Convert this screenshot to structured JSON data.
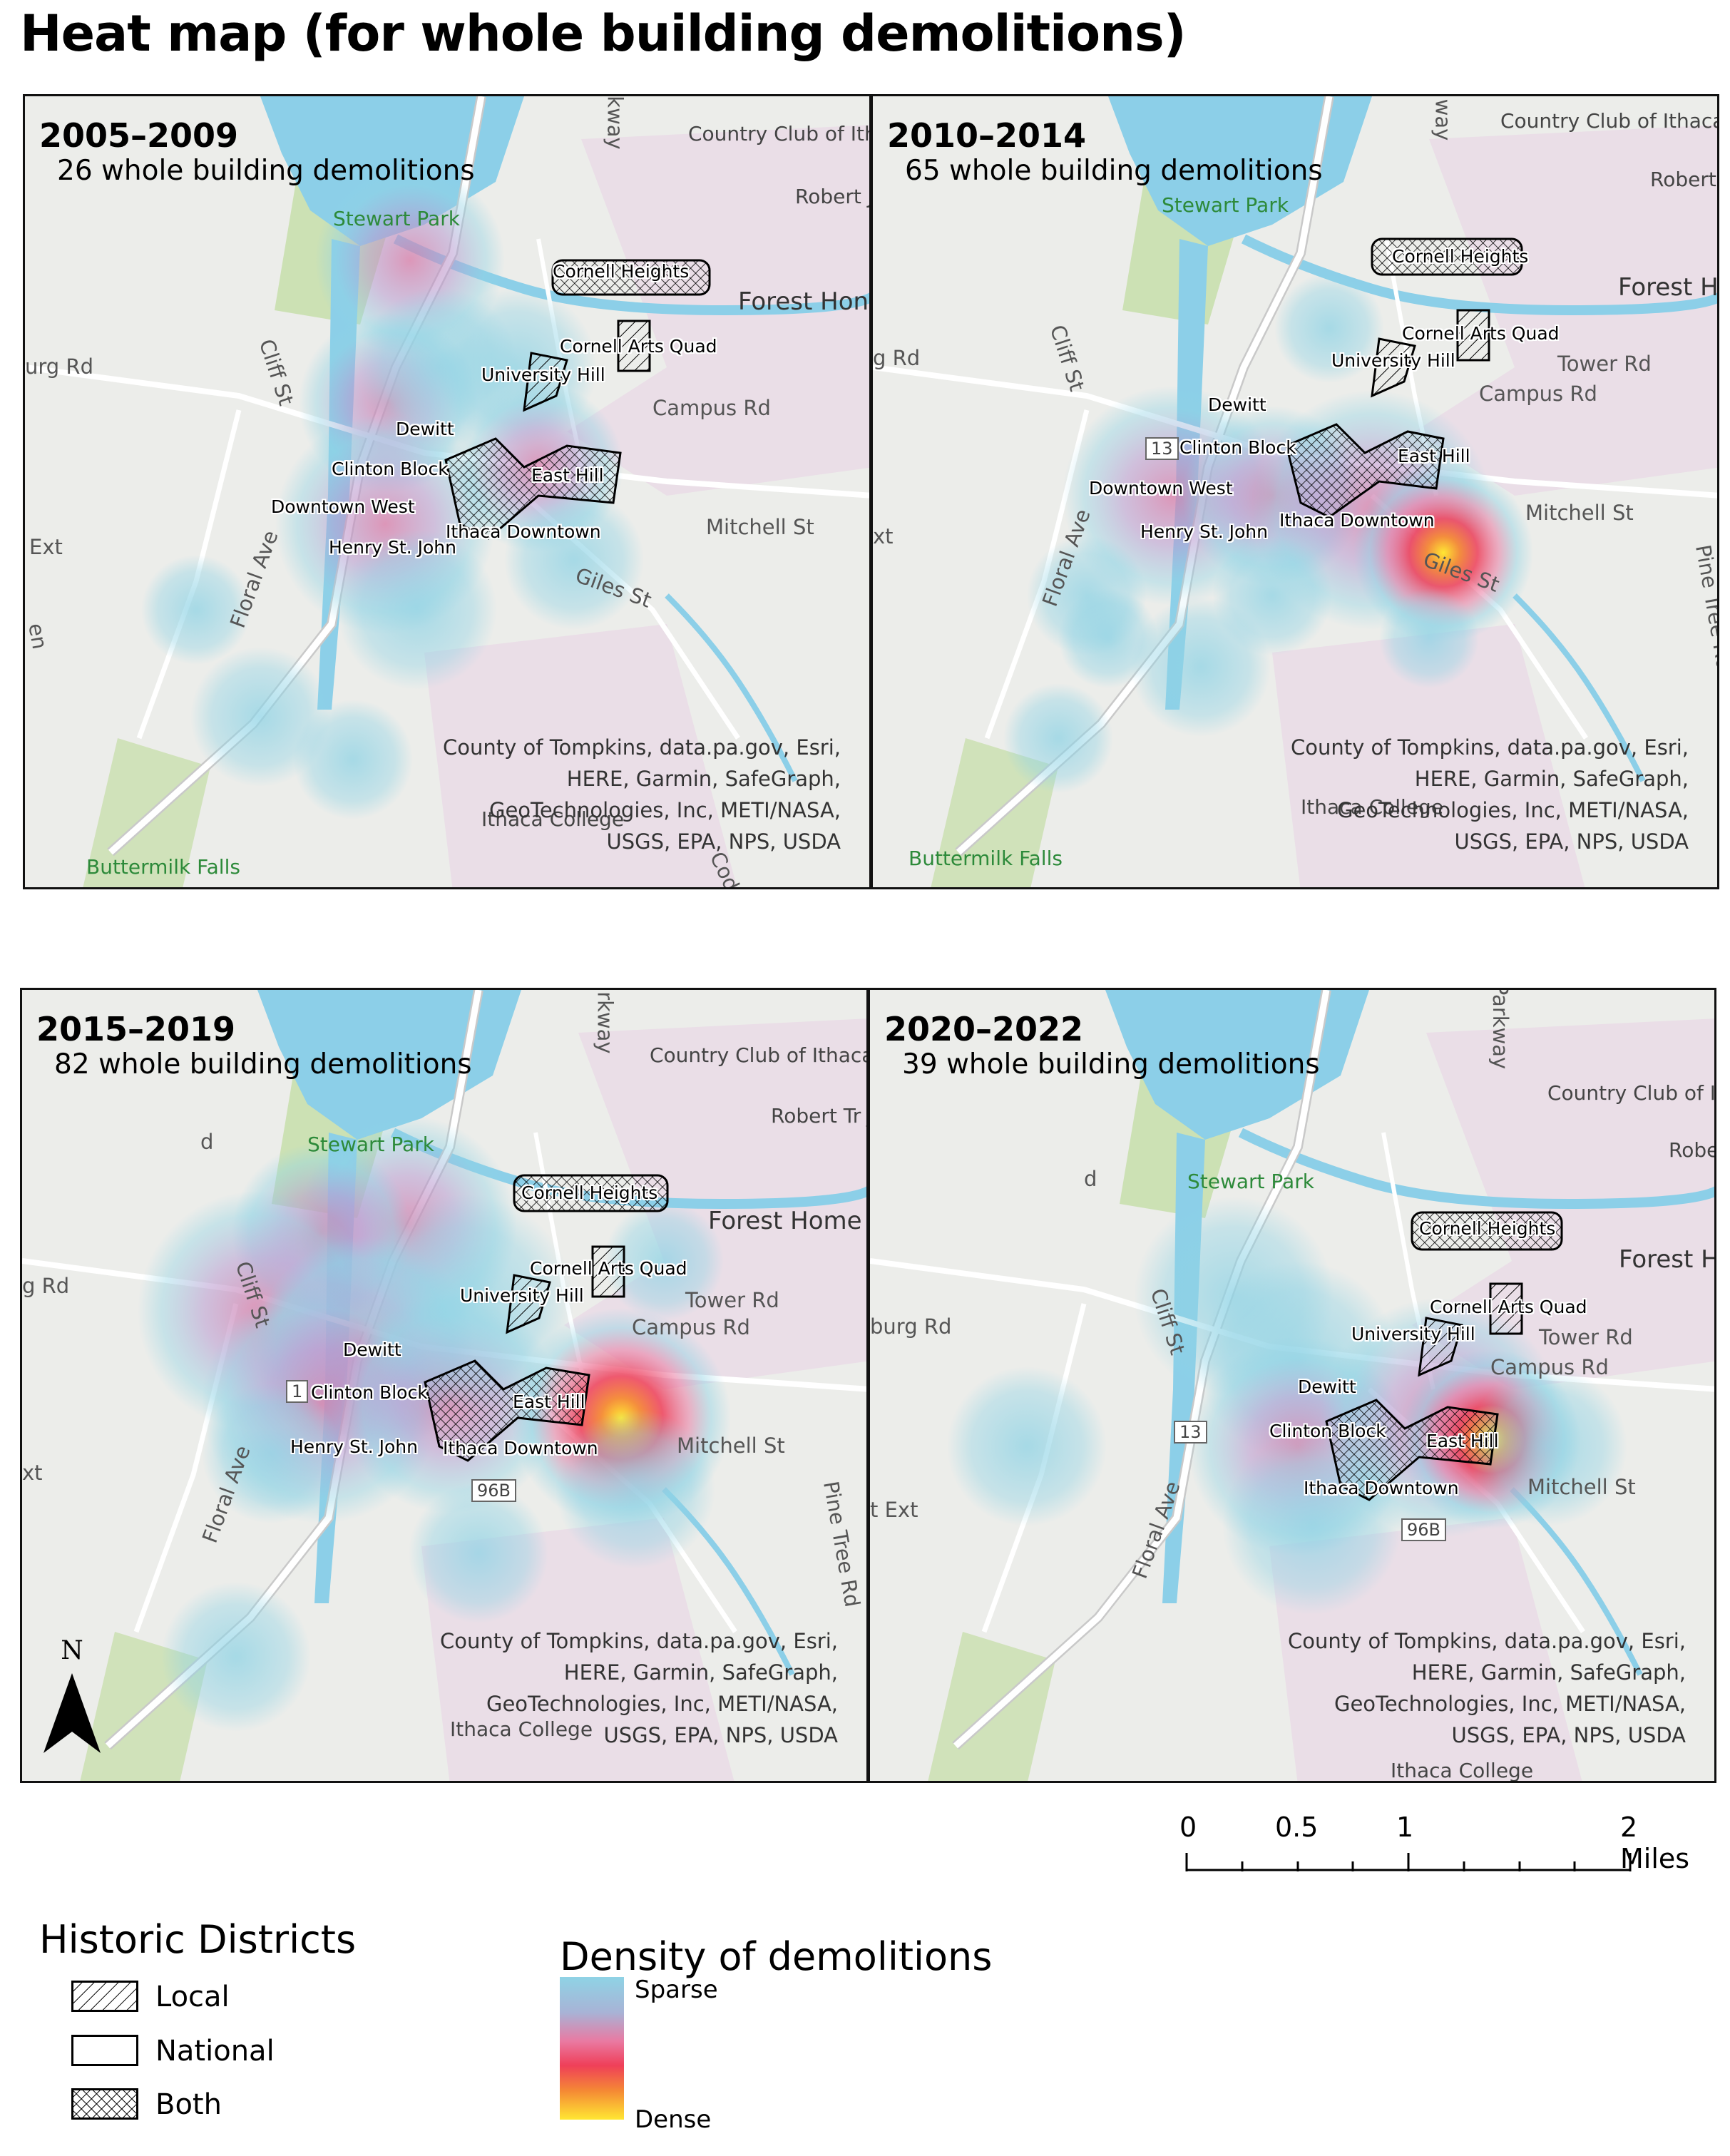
{
  "title": "Heat map (for whole building demolitions)",
  "panels": [
    {
      "period": "2005–2009",
      "count": "26 whole building demolitions",
      "places": {
        "country_club": "Country Club of Ithaca",
        "stewart_park": "Stewart Park",
        "forest_home": "Forest Hon",
        "robert_jones": "Robert Jones Cour",
        "buttermilk": "Buttermilk Falls",
        "ithaca_college": "Ithaca College"
      },
      "roads": {
        "cliff": "Cliff St",
        "burg": "urg Rd",
        "campus": "Campus Rd",
        "mitchell": "Mitchell St",
        "giles": "Giles St",
        "floral": "Floral Ave",
        "ext": "Ext",
        "kway": "kway",
        "codd": "Coddin",
        "en": "en"
      },
      "districts": {
        "cornell_heights": "Cornell Heights",
        "arts_quad": "Cornell Arts Quad",
        "univ_hill": "University Hill",
        "dewitt": "Dewitt",
        "clinton": "Clinton Block",
        "east_hill": "East Hill",
        "downtown_west": "Downtown West",
        "ithaca_downtown": "Ithaca Downtown",
        "henry": "Henry St. John"
      },
      "credits": [
        "County of Tompkins, data.pa.gov, Esri,",
        "HERE, Garmin, SafeGraph,",
        "GeoTechnologies, Inc, METI/NASA,",
        "USGS, EPA, NPS, USDA"
      ]
    },
    {
      "period": "2010–2014",
      "count": "65 whole building demolitions",
      "places": {
        "country_club": "Country Club of Ithaca",
        "stewart_park": "Stewart Park",
        "forest_home": "Forest Home",
        "robert_jones": "Robert Tr Jones G Course",
        "buttermilk": "Buttermilk Falls",
        "ithaca_college": "Ithaca College"
      },
      "roads": {
        "cliff": "Cliff St",
        "burg": "g Rd",
        "campus": "Campus Rd",
        "mitchell": "Mitchell St",
        "giles": "Giles St",
        "floral": "Floral Ave",
        "tower": "Tower Rd",
        "pine": "Pine Tree Rd",
        "kway": "way",
        "xt": "xt",
        "shield13": "13"
      },
      "districts": {
        "cornell_heights": "Cornell Heights",
        "arts_quad": "Cornell Arts Quad",
        "univ_hill": "University Hill",
        "dewitt": "Dewitt",
        "clinton": "Clinton Block",
        "east_hill": "East Hill",
        "downtown_west": "Downtown West",
        "ithaca_downtown": "Ithaca Downtown",
        "henry": "Henry St. John"
      },
      "credits": [
        "County of Tompkins, data.pa.gov, Esri,",
        "HERE, Garmin, SafeGraph,",
        "GeoTechnologies, Inc, METI/NASA,",
        "USGS, EPA, NPS, USDA"
      ]
    },
    {
      "period": "2015–2019",
      "count": "82 whole building demolitions",
      "places": {
        "country_club": "Country Club of Ithaca",
        "stewart_park": "Stewart Park",
        "forest_home": "Forest Home",
        "robert_jones": "Robert Tr Jones G Course",
        "ithaca_college": "Ithaca College"
      },
      "roads": {
        "cliff": "Cliff St",
        "burg": "g Rd",
        "campus": "Campus Rd",
        "mitchell": "Mitchell St",
        "floral": "Floral Ave",
        "tower": "Tower Rd",
        "pine": "Pine Tree Rd",
        "kway": "arkway",
        "xt": "xt",
        "shield96": "96B",
        "shield1": "1",
        "d": "d"
      },
      "districts": {
        "cornell_heights": "Cornell Heights",
        "arts_quad": "Cornell Arts Quad",
        "univ_hill": "University Hill",
        "dewitt": "Dewitt",
        "clinton": "Clinton Block",
        "east_hill": "East Hill",
        "ithaca_downtown": "Ithaca Downtown",
        "henry": "Henry St. John"
      },
      "credits": [
        "County of Tompkins, data.pa.gov, Esri,",
        "HERE, Garmin, SafeGraph,",
        "GeoTechnologies, Inc, METI/NASA,",
        "USGS, EPA, NPS, USDA"
      ]
    },
    {
      "period": "2020–2022",
      "count": "39 whole building demolitions",
      "places": {
        "country_club": "Country Club of Ithaca",
        "stewart_park": "Stewart Park",
        "forest_home": "Forest Ho",
        "robert_jones": "Rober Jones Cou",
        "ithaca_college": "Ithaca College"
      },
      "roads": {
        "cliff": "Cliff St",
        "burg": "burg Rd",
        "campus": "Campus Rd",
        "mitchell": "Mitchell St",
        "floral": "Floral Ave",
        "tower": "Tower Rd",
        "kway": "e Parkway",
        "ext": "t Ext",
        "shield96": "96B",
        "shield13": "13",
        "d": "d"
      },
      "districts": {
        "cornell_heights": "Cornell Heights",
        "arts_quad": "Cornell Arts Quad",
        "univ_hill": "University Hill",
        "dewitt": "Dewitt",
        "clinton": "Clinton Block",
        "east_hill": "East Hill",
        "ithaca_downtown": "Ithaca Downtown"
      },
      "credits": [
        "County of Tompkins, data.pa.gov, Esri,",
        "HERE, Garmin, SafeGraph,",
        "GeoTechnologies, Inc, METI/NASA,",
        "USGS, EPA, NPS, USDA"
      ]
    }
  ],
  "scale": {
    "labels": [
      "0",
      "0.5",
      "1",
      "2 Miles"
    ]
  },
  "north_label": "N",
  "legend_districts": {
    "title": "Historic Districts",
    "items": [
      "Local",
      "National",
      "Both"
    ]
  },
  "legend_density": {
    "title": "Density of demolitions",
    "sparse": "Sparse",
    "dense": "Dense",
    "colors": [
      "#8fd3e5",
      "#e97aa2",
      "#ef3f59",
      "#ffe733"
    ]
  },
  "colors": {
    "water": "#8ccfe8",
    "park": "#c9dfae",
    "campus": "#ead9e6",
    "road": "#ffffff"
  }
}
